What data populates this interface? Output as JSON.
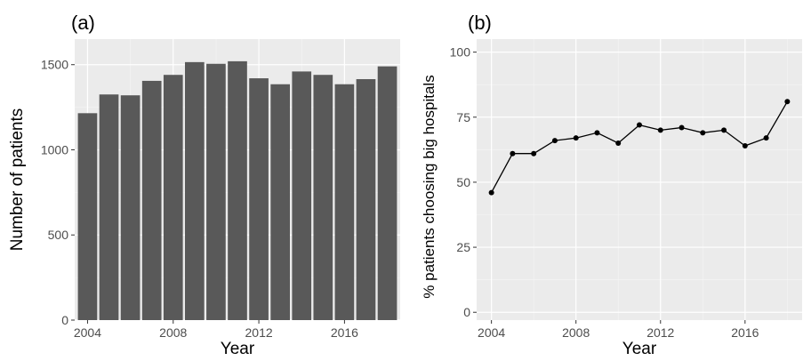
{
  "chart_data": [
    {
      "type": "bar",
      "panel_label": "(a)",
      "xlabel": "Year",
      "ylabel": "Number of patients",
      "x": [
        2004,
        2005,
        2006,
        2007,
        2008,
        2009,
        2010,
        2011,
        2012,
        2013,
        2014,
        2015,
        2016,
        2017,
        2018
      ],
      "values": [
        1215,
        1325,
        1320,
        1405,
        1440,
        1515,
        1505,
        1520,
        1420,
        1385,
        1460,
        1440,
        1385,
        1415,
        1490
      ],
      "x_ticks": [
        "2004",
        "2008",
        "2012",
        "2016"
      ],
      "y_ticks": [
        "0",
        "500",
        "1000",
        "1500"
      ],
      "ylim": [
        0,
        1650
      ],
      "grid": true,
      "colors": {
        "bar": "#595959",
        "panel": "#ebebeb"
      }
    },
    {
      "type": "line",
      "panel_label": "(b)",
      "xlabel": "Year",
      "ylabel": "% patients choosing big hospitals",
      "x": [
        2004,
        2005,
        2006,
        2007,
        2008,
        2009,
        2010,
        2011,
        2012,
        2013,
        2014,
        2015,
        2016,
        2017,
        2018
      ],
      "values": [
        46,
        61,
        61,
        66,
        67,
        69,
        65,
        72,
        70,
        71,
        69,
        70,
        64,
        67,
        81
      ],
      "x_ticks": [
        "2004",
        "2008",
        "2012",
        "2016"
      ],
      "y_ticks": [
        "0",
        "25",
        "50",
        "75",
        "100"
      ],
      "ylim": [
        -3,
        105
      ],
      "markers": true,
      "grid": true,
      "colors": {
        "line": "#000000",
        "panel": "#ebebeb"
      }
    }
  ]
}
